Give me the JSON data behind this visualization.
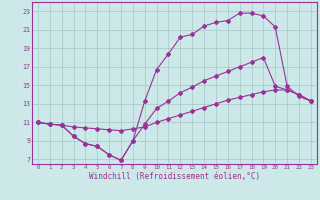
{
  "xlabel": "Windchill (Refroidissement éolien,°C)",
  "xlim": [
    -0.5,
    23.5
  ],
  "ylim": [
    6.5,
    24.0
  ],
  "xticks": [
    0,
    1,
    2,
    3,
    4,
    5,
    6,
    7,
    8,
    9,
    10,
    11,
    12,
    13,
    14,
    15,
    16,
    17,
    18,
    19,
    20,
    21,
    22,
    23
  ],
  "yticks": [
    7,
    9,
    11,
    13,
    15,
    17,
    19,
    21,
    23
  ],
  "bg_color": "#cce8e8",
  "line_color": "#993399",
  "grid_color": "#aacccc",
  "line1_x": [
    0,
    1,
    2,
    3,
    4,
    5,
    6,
    7,
    8,
    9,
    10,
    11,
    12,
    13,
    14,
    15,
    16,
    17,
    18,
    19,
    20,
    21,
    22,
    23
  ],
  "line1_y": [
    11,
    10.8,
    10.7,
    9.5,
    8.7,
    8.4,
    7.5,
    6.9,
    9.0,
    13.3,
    16.7,
    18.4,
    20.2,
    20.5,
    21.4,
    21.8,
    22.0,
    22.8,
    22.8,
    22.5,
    21.3,
    14.9,
    13.8,
    13.3
  ],
  "line2_x": [
    0,
    1,
    2,
    3,
    4,
    5,
    6,
    7,
    8,
    9,
    10,
    11,
    12,
    13,
    14,
    15,
    16,
    17,
    18,
    19,
    20,
    21,
    22,
    23
  ],
  "line2_y": [
    11,
    10.8,
    10.7,
    9.5,
    8.7,
    8.4,
    7.5,
    6.9,
    9.0,
    10.8,
    12.5,
    13.3,
    14.2,
    14.8,
    15.5,
    16.0,
    16.5,
    17.0,
    17.5,
    18.0,
    14.9,
    14.5,
    14.0,
    13.3
  ],
  "line3_x": [
    0,
    1,
    2,
    3,
    4,
    5,
    6,
    7,
    8,
    9,
    10,
    11,
    12,
    13,
    14,
    15,
    16,
    17,
    18,
    19,
    20,
    21,
    22,
    23
  ],
  "line3_y": [
    11,
    10.8,
    10.7,
    10.5,
    10.4,
    10.3,
    10.2,
    10.1,
    10.3,
    10.5,
    11.0,
    11.4,
    11.8,
    12.2,
    12.6,
    13.0,
    13.4,
    13.7,
    14.0,
    14.3,
    14.5,
    14.5,
    14.0,
    13.3
  ]
}
